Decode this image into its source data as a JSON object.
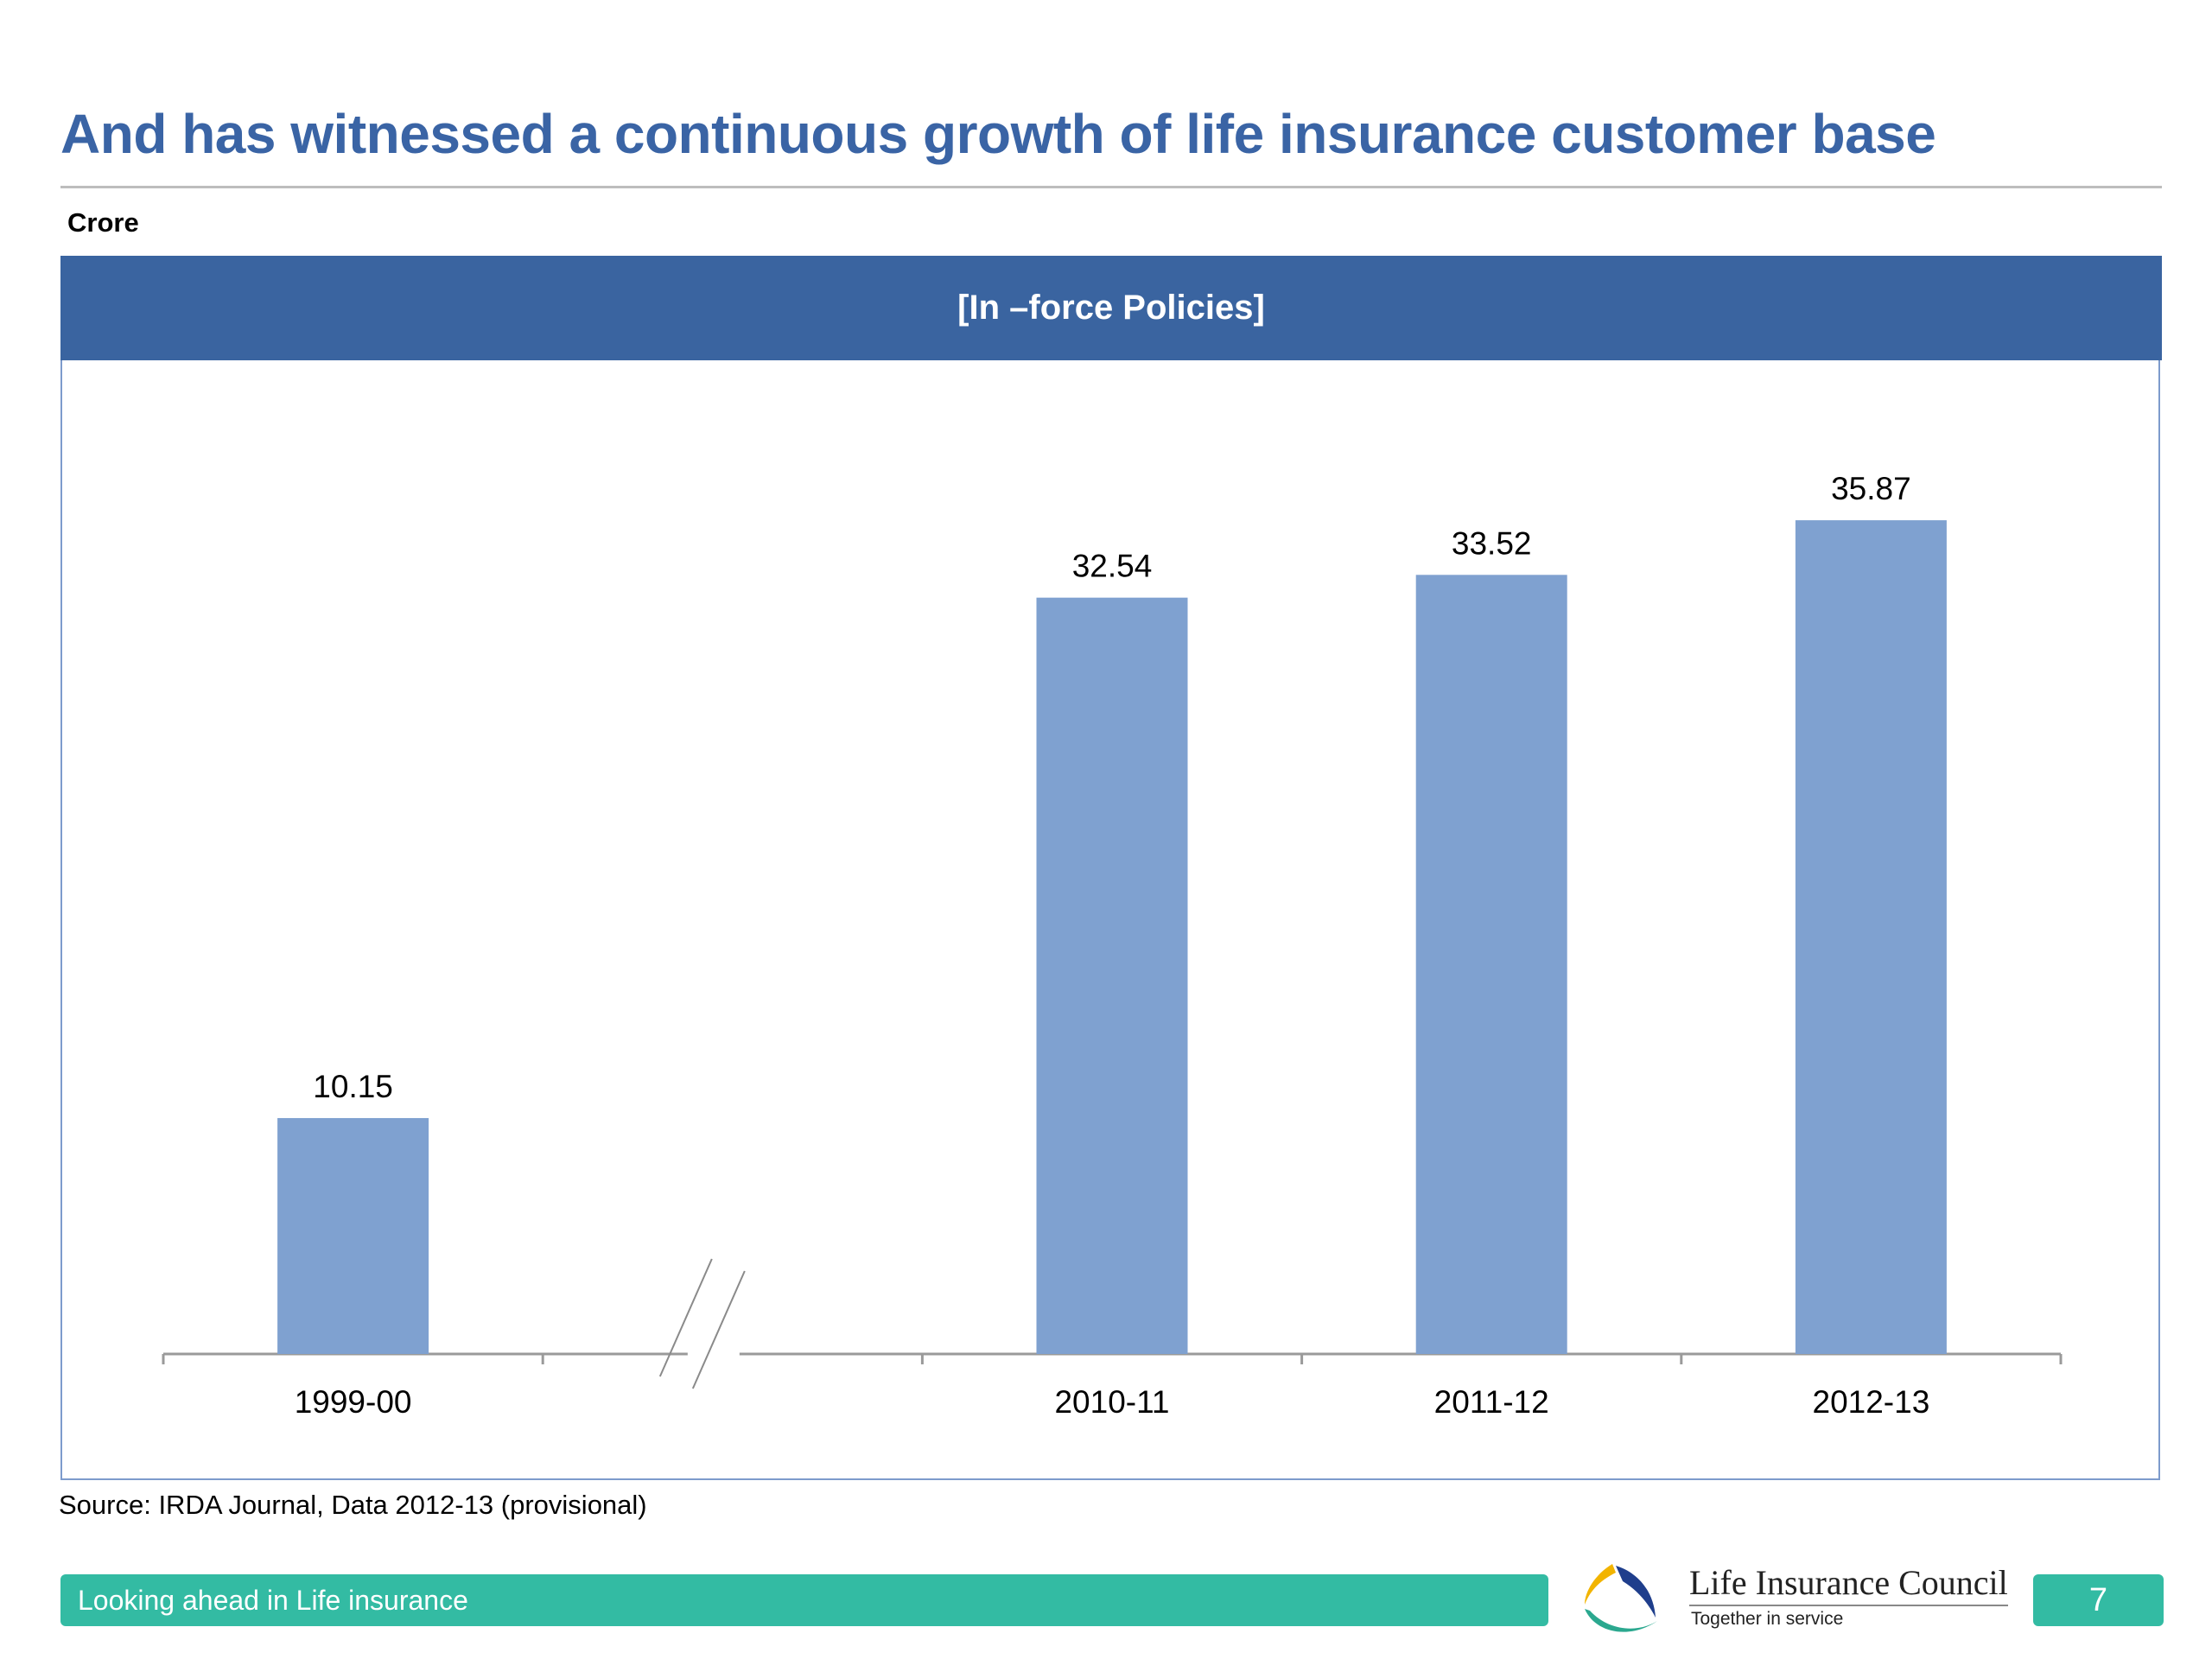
{
  "slide": {
    "title": "And has witnessed a continuous growth of life insurance customer base",
    "unit_label": "Crore",
    "source": "Source: IRDA Journal, Data 2012-13 (provisional)",
    "footer_text": "Looking ahead in Life insurance",
    "brand_name": "Life Insurance Council",
    "brand_tagline": "Together in service",
    "page_number": "7"
  },
  "chart_data": {
    "type": "bar",
    "title": "[In –force Policies]",
    "categories": [
      "1999-00",
      "",
      "2010-11",
      "2011-12",
      "2012-13"
    ],
    "values": [
      10.15,
      null,
      32.54,
      33.52,
      35.87
    ],
    "data_labels": [
      "10.15",
      "",
      "32.54",
      "33.52",
      "35.87"
    ],
    "axis_break_after": "1999-00",
    "xlabel": "",
    "ylabel": "Crore",
    "ylim": [
      0,
      40
    ],
    "grid": false,
    "colors": {
      "bar": "#7FA1D0",
      "header": "#3A64A0",
      "title": "#3A64A5",
      "footer": "#33BBA3"
    }
  }
}
